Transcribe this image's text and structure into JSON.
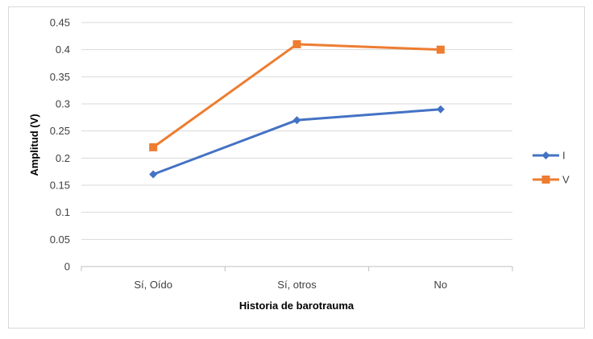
{
  "chart_data": {
    "type": "line",
    "title": "",
    "xlabel": "Historia de barotrauma",
    "ylabel": "Amplitud (V)",
    "categories": [
      "Sí, Oído",
      "Sí, otros",
      "No"
    ],
    "ylim": [
      0,
      0.45
    ],
    "ytick_labels": [
      "0",
      "0.05",
      "0.1",
      "0.15",
      "0.2",
      "0.25",
      "0.3",
      "0.35",
      "0.4",
      "0.45"
    ],
    "grid": true,
    "legend_position": "right",
    "series": [
      {
        "name": "I",
        "values": [
          0.17,
          0.27,
          0.29
        ],
        "color": "#4472c4",
        "marker": "diamond"
      },
      {
        "name": "V",
        "values": [
          0.22,
          0.41,
          0.4
        ],
        "color": "#ed7d31",
        "marker": "square"
      }
    ]
  }
}
